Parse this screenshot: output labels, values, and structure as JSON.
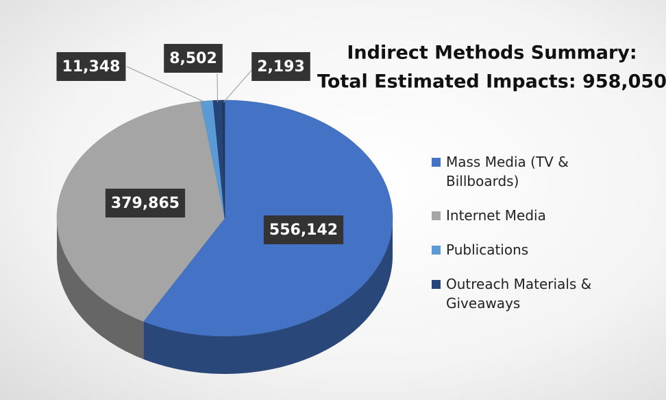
{
  "chart_data": {
    "type": "pie3d",
    "title": "Indirect Methods Summary:",
    "subtitle": "Total Estimated Impacts: 958,050",
    "categories": [
      "Mass Media (TV & Billboards)",
      "Internet Media",
      "Publications",
      "Outreach Materials & Giveaways",
      null
    ],
    "values": [
      556142,
      379865,
      11348,
      8502,
      2193
    ],
    "value_labels": [
      "556,142",
      "379,865",
      "11,348",
      "8,502",
      "2,193"
    ],
    "colors": [
      "#4472c4",
      "#a5a5a5",
      "#5b9bd5",
      "#264478",
      "#1f3a5f"
    ],
    "legend": "right"
  }
}
